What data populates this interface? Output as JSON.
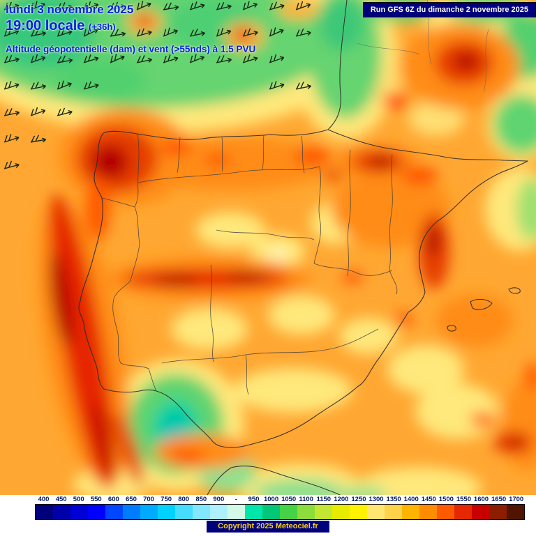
{
  "header": {
    "date_line": "lundi 3 novembre 2025",
    "time_main": "19:00 locale",
    "time_offset": "(+36h)",
    "subtitle": "Altitude géopotentielle (dam) et vent (>55nds) à 1.5 PVU",
    "run_info": "Run GFS 6Z du dimanche 2 novembre 2025"
  },
  "footer": {
    "copyright": "Copyright 2025 Meteociel.fr"
  },
  "legend": {
    "unit": "dam",
    "items": [
      {
        "label": "400",
        "color": "#00007d"
      },
      {
        "label": "450",
        "color": "#0000aa"
      },
      {
        "label": "500",
        "color": "#0000d4"
      },
      {
        "label": "550",
        "color": "#0000ff"
      },
      {
        "label": "600",
        "color": "#0046ff"
      },
      {
        "label": "650",
        "color": "#007dff"
      },
      {
        "label": "700",
        "color": "#00aaff"
      },
      {
        "label": "750",
        "color": "#00d2ff"
      },
      {
        "label": "800",
        "color": "#46dcff"
      },
      {
        "label": "850",
        "color": "#82e6ff"
      },
      {
        "label": "900",
        "color": "#aff0ff"
      },
      {
        "label": "-",
        "color": "#d2fae6"
      },
      {
        "label": "950",
        "color": "#00e6aa"
      },
      {
        "label": "1000",
        "color": "#00c878"
      },
      {
        "label": "1050",
        "color": "#46d246"
      },
      {
        "label": "1100",
        "color": "#8cdc3c"
      },
      {
        "label": "1150",
        "color": "#c3e632"
      },
      {
        "label": "1200",
        "color": "#e6eb00"
      },
      {
        "label": "1250",
        "color": "#fff200"
      },
      {
        "label": "1300",
        "color": "#ffe673"
      },
      {
        "label": "1350",
        "color": "#ffd24b"
      },
      {
        "label": "1400",
        "color": "#ffb400"
      },
      {
        "label": "1450",
        "color": "#ff8c00"
      },
      {
        "label": "1500",
        "color": "#ff5a00"
      },
      {
        "label": "1550",
        "color": "#e62800"
      },
      {
        "label": "1600",
        "color": "#c80000"
      },
      {
        "label": "1650",
        "color": "#8c1e00"
      },
      {
        "label": "1700",
        "color": "#501400"
      }
    ]
  },
  "colors": {
    "header_text": "#0022dd",
    "run_box_bg": "#00007d",
    "legend_label": "#001a66",
    "copyright_bg": "#00007d",
    "copyright_text": "#ffd200",
    "map_base_orange": "#ffa732",
    "map_green": "#66d46f",
    "map_deep_green": "#00d2a0",
    "map_yellow": "#ffe87c",
    "map_deep_orange": "#ff8c14",
    "map_red": "#e62800",
    "map_dark_red": "#b40000",
    "wind_barb": "#142814"
  }
}
